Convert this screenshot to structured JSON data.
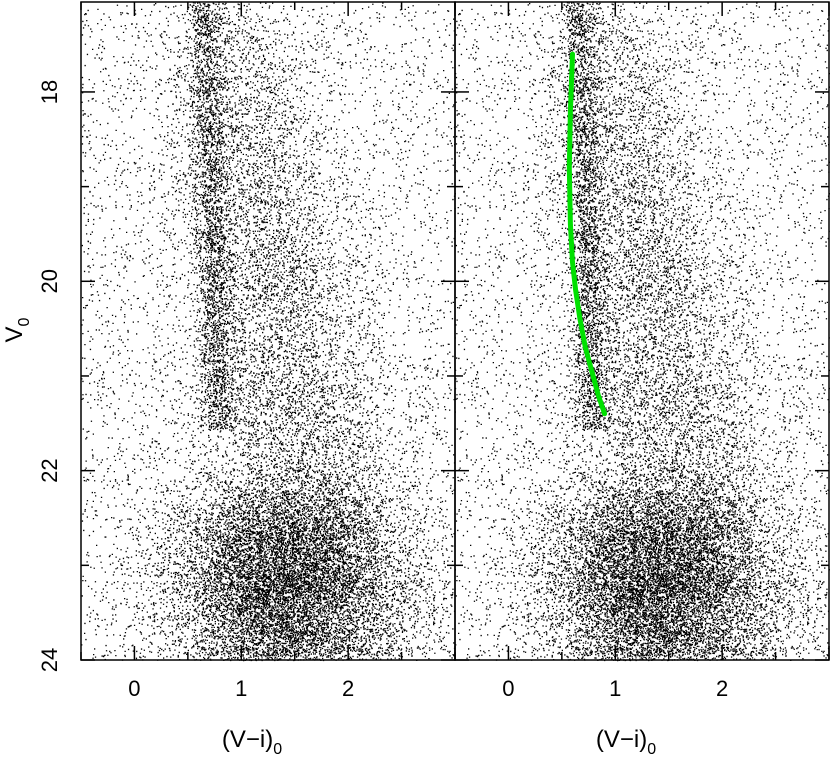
{
  "chart_data": [
    {
      "type": "scatter",
      "panel": "left",
      "xlabel": "(V−i)",
      "xlabel_subscript": "0",
      "ylabel": "V",
      "ylabel_subscript": "0",
      "xlim": [
        -0.5,
        3.0
      ],
      "ylim": [
        24,
        17.05
      ],
      "y_inverted": true,
      "x_ticks": [
        0,
        1,
        2
      ],
      "y_ticks": [
        18,
        20,
        22,
        24
      ],
      "grid": false,
      "points_description": "dense field-star cloud",
      "point_color": "#000000",
      "density_features": [
        {
          "feature": "narrow vertical sequence",
          "x_center": 0.7,
          "y_range": [
            17.05,
            21.3
          ]
        },
        {
          "feature": "broad red plume",
          "x_range": [
            0.9,
            2.8
          ],
          "y_range": [
            17.5,
            22.5
          ]
        },
        {
          "feature": "dense faint clump",
          "x_center": 1.4,
          "y_center": 23.3
        }
      ],
      "series": []
    },
    {
      "type": "scatter",
      "panel": "right",
      "xlabel": "(V−i)",
      "xlabel_subscript": "0",
      "xlim": [
        -0.5,
        3.0
      ],
      "ylim": [
        24,
        17.05
      ],
      "y_inverted": true,
      "x_ticks": [
        0,
        1,
        2
      ],
      "y_ticks": [
        18,
        20,
        22,
        24
      ],
      "grid": false,
      "point_color": "#000000",
      "series": [
        {
          "type": "line",
          "color": "#00e000",
          "x": [
            0.6,
            0.58,
            0.57,
            0.58,
            0.6,
            0.63,
            0.67,
            0.72,
            0.78,
            0.84,
            0.9
          ],
          "y": [
            17.6,
            18.2,
            18.8,
            19.4,
            19.8,
            20.1,
            20.4,
            20.7,
            20.95,
            21.2,
            21.4
          ]
        }
      ]
    }
  ]
}
